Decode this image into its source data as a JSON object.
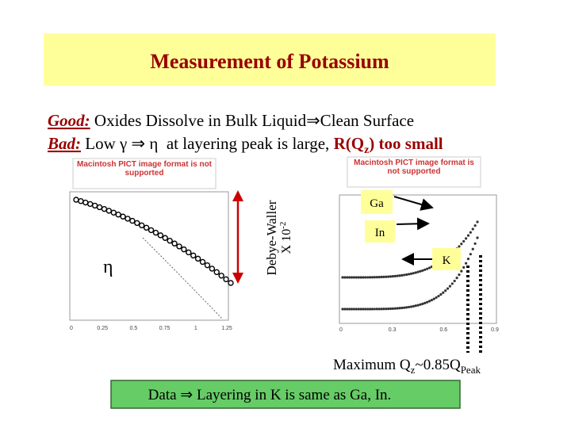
{
  "header": {
    "title": "Measurement of Potassium"
  },
  "lines": [
    {
      "label": "Good:",
      "text": " Oxides Dissolve in Bulk Liquid⇒Clean Surface"
    },
    {
      "label": "Bad:",
      "text": " Low γ ⇒ η  at layering peak is large, ",
      "emphasis": "R(Q",
      "sub": "z",
      "emphasis_end": ")",
      "tail": " too small"
    }
  ],
  "images": [
    {
      "text": "Macintosh PICT image format is not supported"
    },
    {
      "text": "Macintosh PICT image format is not supported"
    }
  ],
  "left_plot": {
    "symbol": "η",
    "side_label": "Debye-Waller",
    "side_factor": "X 10",
    "side_exp": "-2",
    "xticks": [
      "0",
      "0.25",
      "0.5",
      "0.75",
      "1",
      "1.25"
    ]
  },
  "right_plot": {
    "labels": [
      "Ga",
      "In",
      "K"
    ],
    "xticks": [
      "0",
      "0.3",
      "0.6",
      "0.9"
    ]
  },
  "note": {
    "text": "Maximum Q",
    "sub": "z",
    "text2": "~0.85Q",
    "sub2": "Peak"
  },
  "conclusion": "Data ⇒ Layering in K is same as Ga, In."
}
